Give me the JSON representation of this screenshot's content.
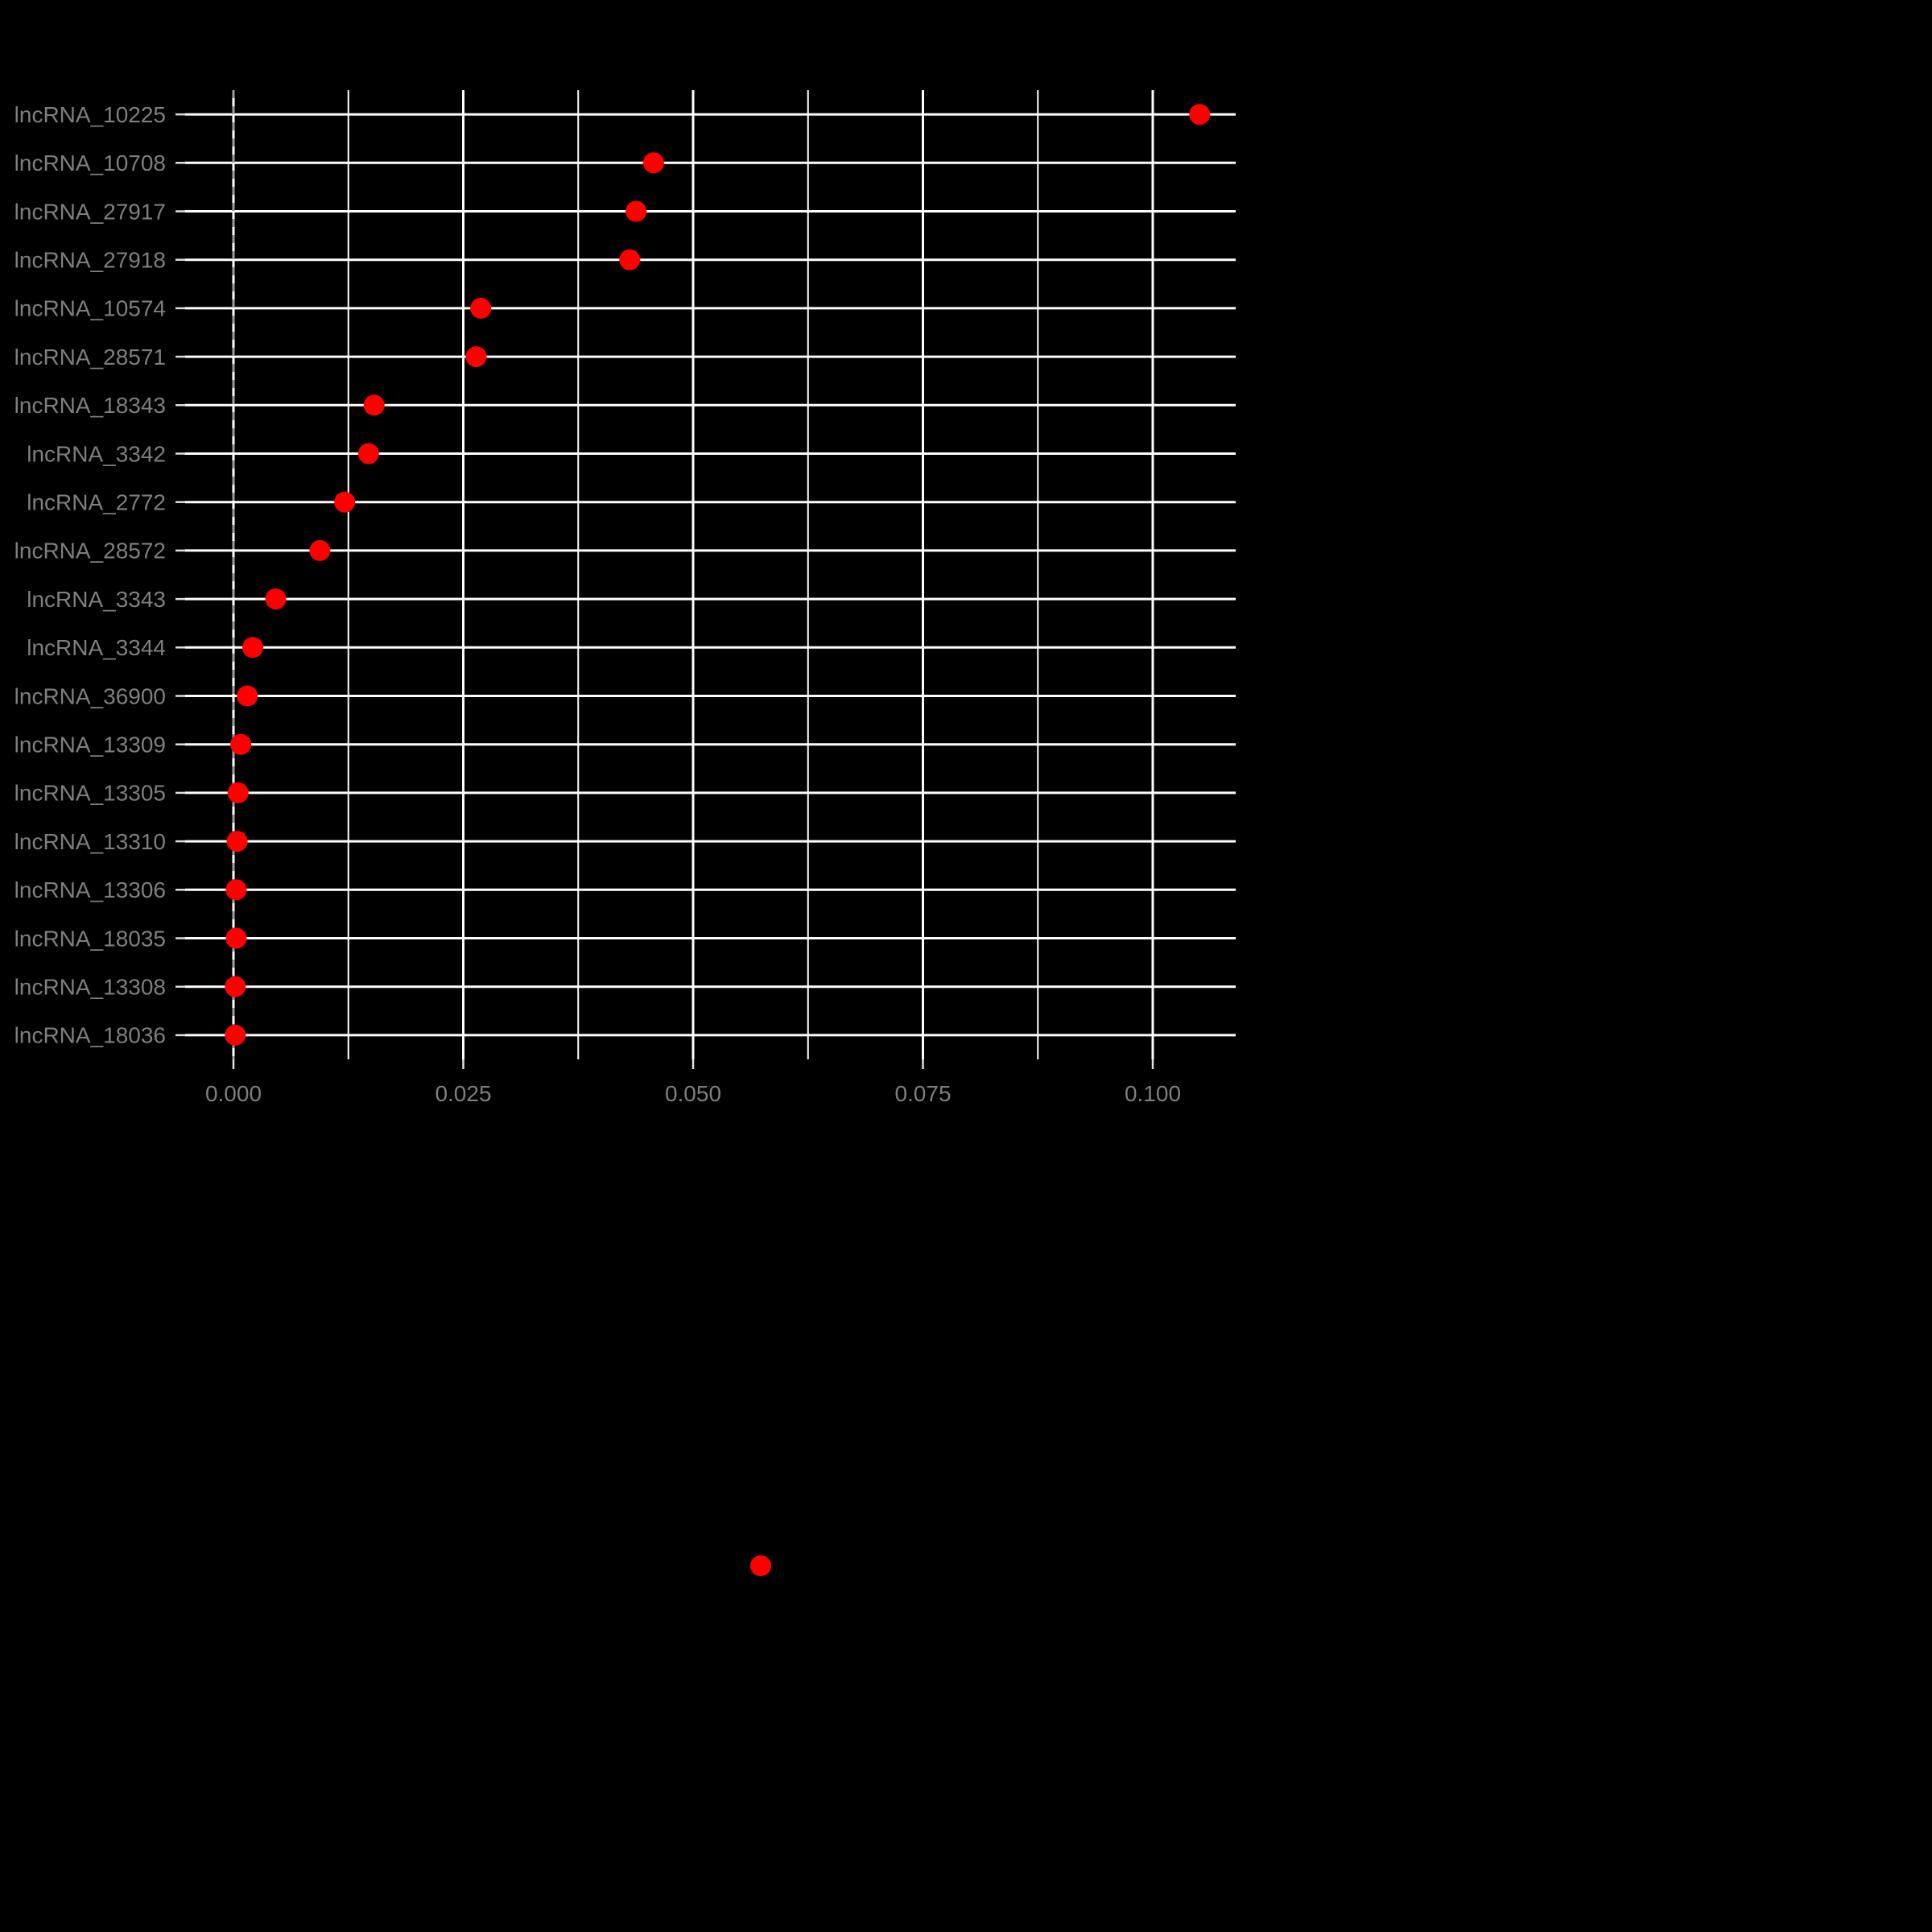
{
  "chart_data": {
    "type": "scatter",
    "subtype": "horizontal-dot-plot",
    "title": "",
    "xlabel": "",
    "ylabel": "",
    "categories": [
      "lncRNA_10225",
      "lncRNA_10708",
      "lncRNA_27917",
      "lncRNA_27918",
      "lncRNA_10574",
      "lncRNA_28571",
      "lncRNA_18343",
      "lncRNA_3342",
      "lncRNA_2772",
      "lncRNA_28572",
      "lncRNA_3343",
      "lncRNA_3344",
      "lncRNA_36900",
      "lncRNA_13309",
      "lncRNA_13305",
      "lncRNA_13310",
      "lncRNA_13306",
      "lncRNA_18035",
      "lncRNA_13308",
      "lncRNA_18036"
    ],
    "values": [
      0.1051,
      0.0457,
      0.0438,
      0.0431,
      0.0269,
      0.0264,
      0.0153,
      0.0147,
      0.0121,
      0.0094,
      0.0046,
      0.0021,
      0.0015,
      0.0008,
      0.0005,
      0.0004,
      0.0003,
      0.0003,
      0.0002,
      0.0002
    ],
    "x_ticks": [
      0,
      0.025,
      0.05,
      0.075,
      0.1
    ],
    "x_tick_labels": [
      "0.000",
      "0.025",
      "0.050",
      "0.075",
      "0.100"
    ],
    "x_minor_ticks": [
      0.0125,
      0.0375,
      0.0625,
      0.0875
    ],
    "xlim": [
      -0.0053,
      0.109
    ],
    "grid": true,
    "zero_line": {
      "x": 0,
      "style": "dashed",
      "color": "#9e9e9e"
    },
    "colors": {
      "point": "#ff0000",
      "grid": "#ffffff",
      "axis_text": "#7f7f7f",
      "tick": "#e0e0e0",
      "background": "#000000"
    },
    "legend": {
      "position": "bottom-center",
      "marker": "point",
      "marker_color": "#ff0000"
    }
  }
}
